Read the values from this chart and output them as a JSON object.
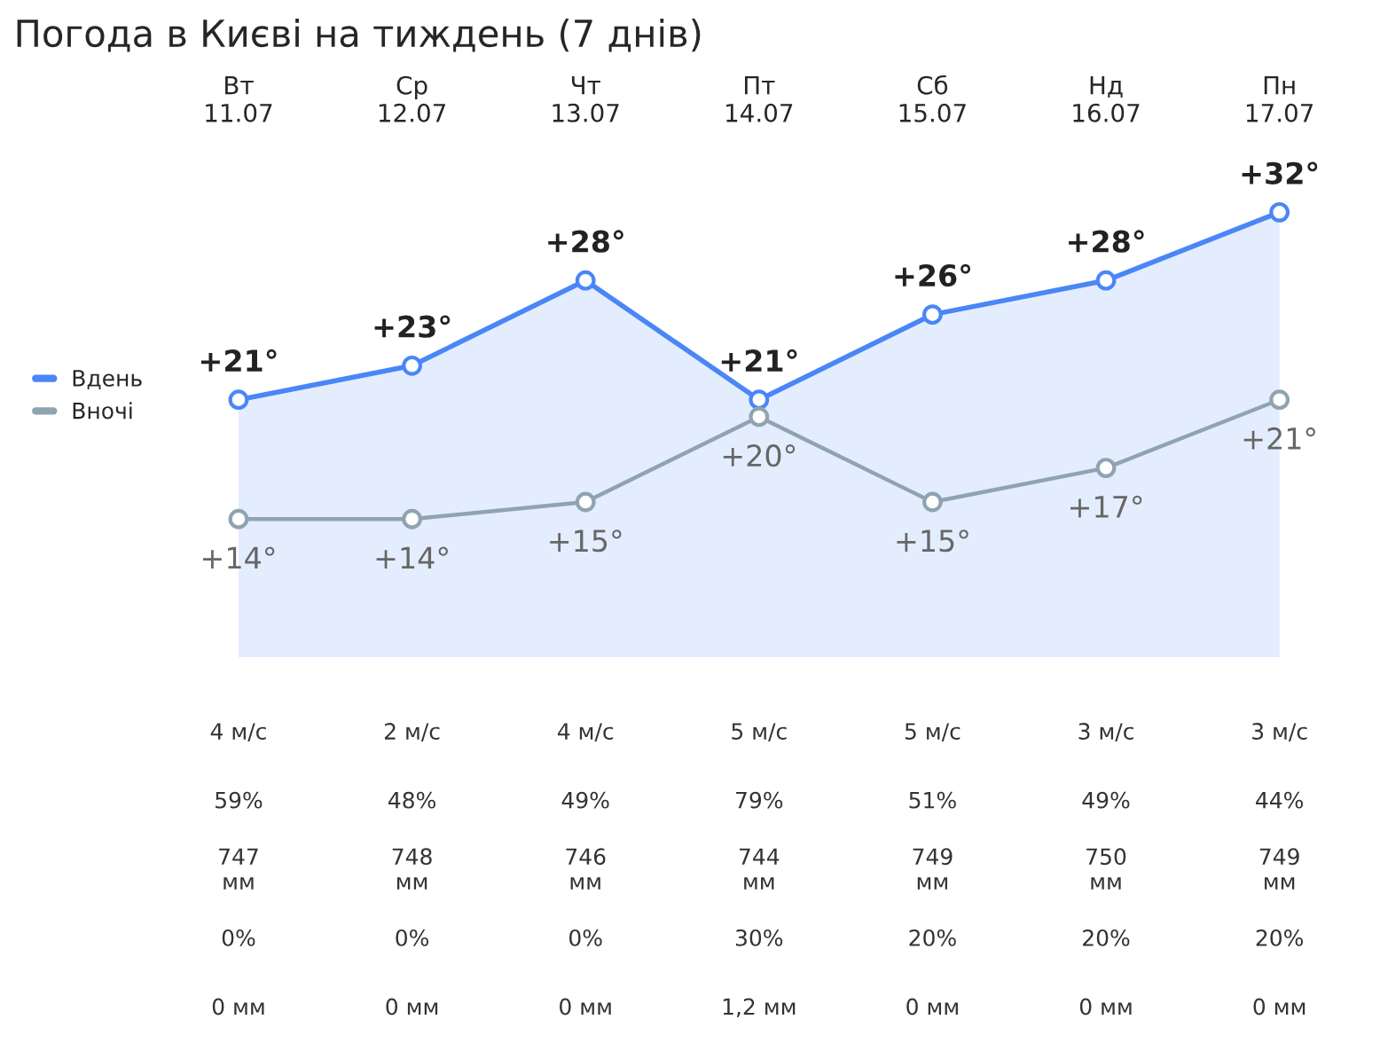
{
  "chart_data": {
    "type": "line",
    "title": "Погода в Києві на тиждень (7 днів)",
    "categories": [
      "Вт\n11.07",
      "Ср\n12.07",
      "Чт\n13.07",
      "Пт\n14.07",
      "Сб\n15.07",
      "Нд\n16.07",
      "Пн\n17.07"
    ],
    "series": [
      {
        "name": "Вдень",
        "type": "area",
        "color": "#4a86f7",
        "values": [
          21,
          23,
          28,
          21,
          26,
          28,
          32
        ],
        "value_labels": [
          "+21°",
          "+23°",
          "+28°",
          "+21°",
          "+26°",
          "+28°",
          "+32°"
        ]
      },
      {
        "name": "Вночі",
        "color": "#8fa3b0",
        "values": [
          14,
          14,
          15,
          20,
          15,
          17,
          21
        ],
        "value_labels": [
          "+14°",
          "+14°",
          "+15°",
          "+20°",
          "+15°",
          "+17°",
          "+21°"
        ]
      }
    ],
    "tick_labels": "x",
    "marker": "circle",
    "legend": "left",
    "grid": false,
    "annotations": [
      "4 м/с",
      "2 м/с",
      "4 м/с",
      "5 м/с",
      "5 м/с",
      "3 м/с",
      "3 м/с",
      "59%",
      "48%",
      "49%",
      "79%",
      "51%",
      "49%",
      "44%",
      "747\nмм",
      "748\nмм",
      "746\nмм",
      "744\nмм",
      "749\nмм",
      "750\nмм",
      "749\nмм",
      "0%",
      "0%",
      "0%",
      "30%",
      "20%",
      "20%",
      "20%",
      "0 мм",
      "0 мм",
      "0 мм",
      "1,2 мм",
      "0 мм",
      "0 мм",
      "0 мм"
    ]
  }
}
